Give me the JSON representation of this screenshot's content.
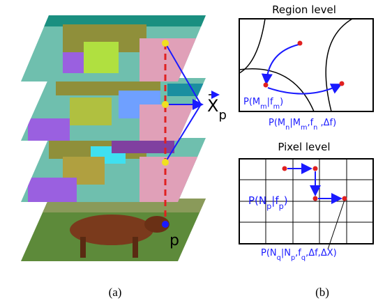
{
  "figure": {
    "panel_a": {
      "vector_label": [
        "X",
        "p"
      ],
      "point_label": "p",
      "caption": "(a)"
    },
    "panel_b": {
      "region": {
        "title": "Region level",
        "labels": [
          [
            "P(M",
            "m",
            "|f",
            "m",
            ")"
          ],
          [
            "P(M",
            "n",
            "|M",
            "m",
            ",f",
            "n",
            " ,Δf)"
          ]
        ]
      },
      "pixel": {
        "title": "Pixel level",
        "labels": [
          [
            "P(N",
            "p",
            "|f",
            "p",
            ")"
          ],
          [
            "P(N",
            "q",
            "|N",
            "p",
            ",f",
            "q",
            ",Δf,ΔX)"
          ]
        ]
      },
      "caption": "(b)"
    }
  }
}
